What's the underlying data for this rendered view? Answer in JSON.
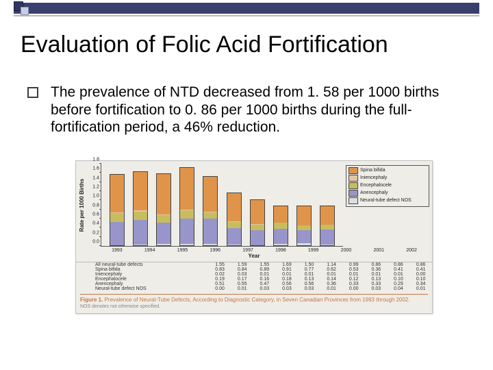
{
  "title": "Evaluation of Folic Acid Fortification",
  "body_text": "The prevalence of NTD decreased from 1. 58 per 1000 births before fortification to 0. 86 per 1000 births during the full-fortification period, a 46% reduction.",
  "chart": {
    "type": "bar",
    "orientation": "stacked",
    "ylabel": "Rate per 1000 Births",
    "xlabel": "Year",
    "ylim": [
      0,
      1.8
    ],
    "ytick_step": 0.2,
    "yticks": [
      "0.0",
      "0.2",
      "0.4",
      "0.6",
      "0.8",
      "1.0",
      "1.2",
      "1.4",
      "1.6",
      "1.8"
    ],
    "years": [
      "1993",
      "1994",
      "1995",
      "1996",
      "1997",
      "1998",
      "1999",
      "2000",
      "2001",
      "2002"
    ],
    "categories": [
      "Spina bifida",
      "Iniencephaly",
      "Encephalocele",
      "Anencephaly",
      "Neural-tube defect NOS"
    ],
    "colors": [
      "#e0944a",
      "#e5c4a3",
      "#c7bd5e",
      "#9795c9",
      "#dcdde2"
    ],
    "background_color": "#efede8",
    "axis_color": "#555555",
    "bar_border": "#444444",
    "series": {
      "Spina bifida": [
        0.83,
        0.84,
        0.89,
        0.91,
        0.77,
        0.62,
        0.53,
        0.36,
        0.41,
        0.41
      ],
      "Iniencephaly": [
        0.02,
        0.03,
        0.01,
        0.01,
        0.01,
        0.01,
        0.01,
        0.01,
        0.01,
        0.0
      ],
      "Encephalocele": [
        0.19,
        0.17,
        0.16,
        0.18,
        0.13,
        0.14,
        0.12,
        0.13,
        0.1,
        0.1
      ],
      "Anencephaly": [
        0.51,
        0.55,
        0.47,
        0.56,
        0.56,
        0.36,
        0.33,
        0.33,
        0.29,
        0.34
      ],
      "Neural-tube defect NOS": [
        0.0,
        0.01,
        0.03,
        0.03,
        0.03,
        0.01,
        0.0,
        0.03,
        0.04,
        0.01
      ]
    },
    "table_rows": [
      {
        "name": "All neural-tube defects",
        "vals": [
          1.55,
          1.59,
          1.55,
          1.69,
          1.5,
          1.14,
          0.99,
          0.86,
          0.86,
          0.86
        ]
      },
      {
        "name": "Spina bifida",
        "vals": [
          0.83,
          0.84,
          0.89,
          0.91,
          0.77,
          0.62,
          0.53,
          0.36,
          0.41,
          0.41
        ]
      },
      {
        "name": "Iniencephaly",
        "vals": [
          0.02,
          0.03,
          0.01,
          0.01,
          0.01,
          0.01,
          0.01,
          0.01,
          0.01,
          0.0
        ]
      },
      {
        "name": "Encephalocele",
        "vals": [
          0.19,
          0.17,
          0.16,
          0.18,
          0.13,
          0.14,
          0.12,
          0.13,
          0.1,
          0.1
        ]
      },
      {
        "name": "Anencephaly",
        "vals": [
          0.51,
          0.55,
          0.47,
          0.56,
          0.56,
          0.36,
          0.33,
          0.33,
          0.29,
          0.34
        ]
      },
      {
        "name": "Neural-tube defect NOS",
        "vals": [
          0.0,
          0.01,
          0.03,
          0.03,
          0.03,
          0.01,
          0.0,
          0.03,
          0.04,
          0.01
        ]
      }
    ],
    "caption_label": "Figure 1.",
    "caption_text": "Prevalence of Neural-Tube Defects, According to Diagnostic Category, in Seven Canadian Provinces from 1993 through 2002.",
    "note": "NOS denotes not otherwise specified.",
    "caption_color": "#c77545"
  }
}
